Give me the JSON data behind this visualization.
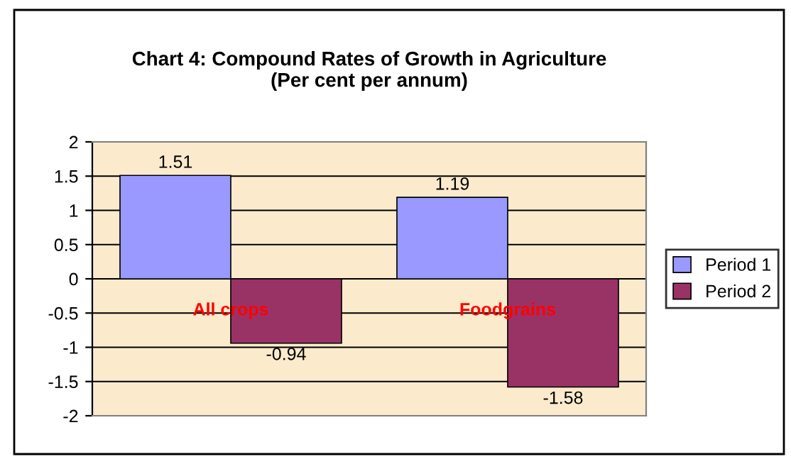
{
  "chart_data": {
    "type": "bar",
    "title": "Chart 4: Compound Rates of Growth in Agriculture\n(Per cent per annum)",
    "categories": [
      "All crops",
      "Foodgrains"
    ],
    "series": [
      {
        "name": "Period 1",
        "color": "#9999ff",
        "values": [
          1.51,
          1.19
        ]
      },
      {
        "name": "Period 2",
        "color": "#993366",
        "values": [
          -0.94,
          -1.58
        ]
      }
    ],
    "ylim": [
      -2,
      2
    ],
    "yticks": [
      -2,
      -1.5,
      -1,
      -0.5,
      0,
      0.5,
      1,
      1.5,
      2
    ],
    "grid": "y",
    "legend": "right",
    "data_labels": true
  }
}
